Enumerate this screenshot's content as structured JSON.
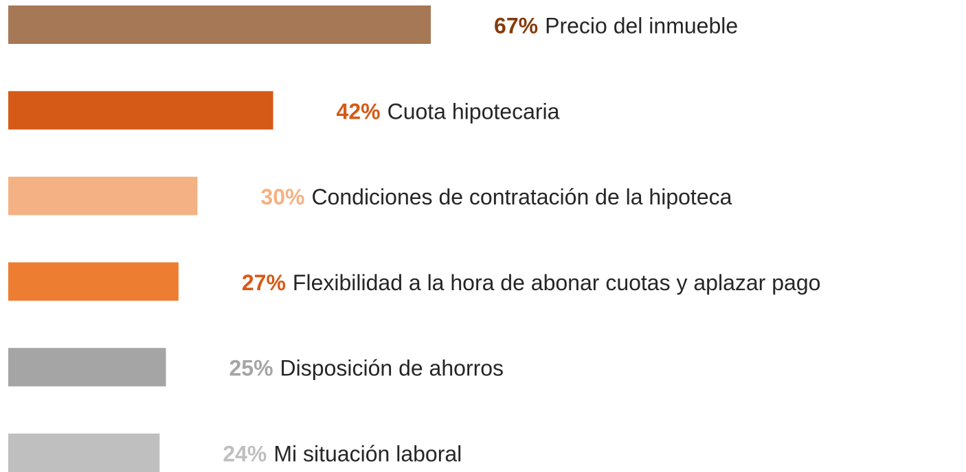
{
  "chart_data": {
    "type": "bar",
    "orientation": "horizontal",
    "categories": [
      "Precio del inmueble",
      "Cuota hipotecaria",
      "Condiciones de contratación de la hipoteca",
      "Flexibilidad a la hora de abonar cuotas y aplazar pago",
      "Disposición de ahorros",
      "Mi situación laboral"
    ],
    "values": [
      67,
      42,
      30,
      27,
      25,
      24
    ],
    "value_labels": [
      "67%",
      "42%",
      "30%",
      "27%",
      "25%",
      "24%"
    ],
    "colors": [
      "#a67855",
      "#d65a17",
      "#f4b183",
      "#ed7d31",
      "#a5a5a5",
      "#bfbfbf"
    ],
    "label_colors": [
      "#843c0c",
      "#d65a17",
      "#f4b183",
      "#d65a17",
      "#a5a5a5",
      "#bfbfbf"
    ]
  }
}
